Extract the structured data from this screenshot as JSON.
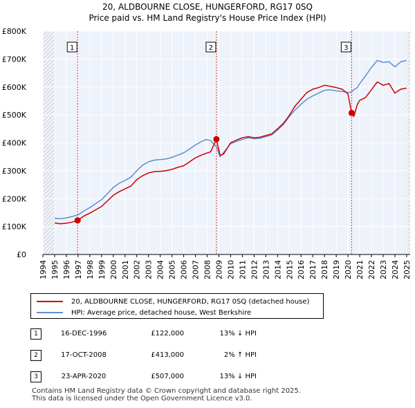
{
  "chart_data": {
    "type": "line",
    "title": "20, ALDBOURNE CLOSE, HUNGERFORD, RG17 0SQ",
    "subtitle": "Price paid vs. HM Land Registry's House Price Index (HPI)",
    "xlabel": "",
    "ylabel": "",
    "xlim": [
      1994,
      2025.3
    ],
    "ylim": [
      0,
      800000
    ],
    "x_ticks": [
      "1994",
      "1995",
      "1996",
      "1997",
      "1998",
      "1999",
      "2000",
      "2001",
      "2002",
      "2003",
      "2004",
      "2005",
      "2006",
      "2007",
      "2008",
      "2009",
      "2010",
      "2011",
      "2012",
      "2013",
      "2014",
      "2015",
      "2016",
      "2017",
      "2018",
      "2019",
      "2020",
      "2021",
      "2022",
      "2023",
      "2024",
      "2025"
    ],
    "y_ticks": [
      {
        "value": 0,
        "label": "£0"
      },
      {
        "value": 100000,
        "label": "£100K"
      },
      {
        "value": 200000,
        "label": "£200K"
      },
      {
        "value": 300000,
        "label": "£300K"
      },
      {
        "value": 400000,
        "label": "£400K"
      },
      {
        "value": 500000,
        "label": "£500K"
      },
      {
        "value": 600000,
        "label": "£600K"
      },
      {
        "value": 700000,
        "label": "£700K"
      },
      {
        "value": 800000,
        "label": "£800K"
      }
    ],
    "grid": true,
    "series": [
      {
        "name": "20, ALDBOURNE CLOSE, HUNGERFORD, RG17 0SQ (detached house)",
        "color": "#cc0000",
        "x": [
          1995.0,
          1995.5,
          1996.0,
          1996.5,
          1996.96,
          1997.5,
          1998.0,
          1998.5,
          1999.0,
          1999.5,
          2000.0,
          2000.5,
          2001.0,
          2001.5,
          2002.0,
          2002.5,
          2003.0,
          2003.5,
          2004.0,
          2004.5,
          2005.0,
          2005.5,
          2006.0,
          2006.5,
          2007.0,
          2007.5,
          2007.9,
          2008.3,
          2008.79,
          2009.1,
          2009.4,
          2010.0,
          2010.5,
          2011.0,
          2011.5,
          2012.0,
          2012.5,
          2013.0,
          2013.5,
          2014.0,
          2014.5,
          2015.0,
          2015.5,
          2016.0,
          2016.5,
          2017.0,
          2017.5,
          2018.0,
          2018.5,
          2019.0,
          2019.5,
          2020.0,
          2020.31,
          2020.5,
          2020.8,
          2021.0,
          2021.5,
          2022.0,
          2022.5,
          2023.0,
          2023.5,
          2024.0,
          2024.5,
          2025.0
        ],
        "values": [
          113000,
          110000,
          112000,
          116000,
          122000,
          138000,
          148000,
          160000,
          172000,
          192000,
          212000,
          225000,
          235000,
          245000,
          268000,
          282000,
          292000,
          297000,
          298000,
          300000,
          305000,
          312000,
          318000,
          332000,
          346000,
          356000,
          362000,
          368000,
          413000,
          355000,
          360000,
          400000,
          410000,
          418000,
          422000,
          418000,
          420000,
          426000,
          432000,
          450000,
          470000,
          498000,
          532000,
          556000,
          580000,
          592000,
          598000,
          606000,
          602000,
          598000,
          592000,
          575000,
          507000,
          494000,
          538000,
          552000,
          562000,
          590000,
          618000,
          606000,
          612000,
          578000,
          592000,
          596000
        ]
      },
      {
        "name": "HPI: Average price, detached house, West Berkshire",
        "color": "#5b8fcc",
        "x": [
          1995.0,
          1995.5,
          1996.0,
          1996.5,
          1997.0,
          1997.5,
          1998.0,
          1998.5,
          1999.0,
          1999.5,
          2000.0,
          2000.5,
          2001.0,
          2001.5,
          2002.0,
          2002.5,
          2003.0,
          2003.5,
          2004.0,
          2004.5,
          2005.0,
          2005.5,
          2006.0,
          2006.5,
          2007.0,
          2007.5,
          2007.9,
          2008.3,
          2008.8,
          2009.1,
          2009.4,
          2010.0,
          2010.5,
          2011.0,
          2011.5,
          2012.0,
          2012.5,
          2013.0,
          2013.5,
          2014.0,
          2014.5,
          2015.0,
          2015.5,
          2016.0,
          2016.5,
          2017.0,
          2017.5,
          2018.0,
          2018.5,
          2019.0,
          2019.5,
          2020.0,
          2020.3,
          2020.5,
          2020.8,
          2021.0,
          2021.5,
          2022.0,
          2022.5,
          2023.0,
          2023.5,
          2024.0,
          2024.5,
          2025.0
        ],
        "values": [
          130000,
          128000,
          131000,
          136000,
          142000,
          156000,
          168000,
          182000,
          196000,
          218000,
          240000,
          255000,
          265000,
          277000,
          300000,
          320000,
          332000,
          338000,
          340000,
          342000,
          348000,
          356000,
          364000,
          378000,
          392000,
          404000,
          412000,
          408000,
          385000,
          350000,
          365000,
          397000,
          405000,
          412000,
          418000,
          414000,
          416000,
          422000,
          428000,
          446000,
          466000,
          494000,
          518000,
          538000,
          556000,
          568000,
          578000,
          588000,
          590000,
          586000,
          584000,
          580000,
          582000,
          590000,
          598000,
          612000,
          640000,
          670000,
          695000,
          688000,
          690000,
          672000,
          690000,
          695000
        ]
      }
    ],
    "annotations": [
      {
        "num": "1",
        "x": 1996.96,
        "price_value": 122000
      },
      {
        "num": "2",
        "x": 2008.79,
        "price_value": 413000
      },
      {
        "num": "3",
        "x": 2020.31,
        "price_value": 507000
      }
    ]
  },
  "legend": {
    "series_1_label": "20, ALDBOURNE CLOSE, HUNGERFORD, RG17 0SQ (detached house)",
    "series_2_label": "HPI: Average price, detached house, West Berkshire"
  },
  "transactions": [
    {
      "num": "1",
      "date": "16-DEC-1996",
      "price": "£122,000",
      "hpi": "13% ↓ HPI"
    },
    {
      "num": "2",
      "date": "17-OCT-2008",
      "price": "£413,000",
      "hpi": "2% ↑ HPI"
    },
    {
      "num": "3",
      "date": "23-APR-2020",
      "price": "£507,000",
      "hpi": "13% ↓ HPI"
    }
  ],
  "footer": {
    "line1": "Contains HM Land Registry data © Crown copyright and database right 2025.",
    "line2": "This data is licensed under the Open Government Licence v3.0."
  }
}
